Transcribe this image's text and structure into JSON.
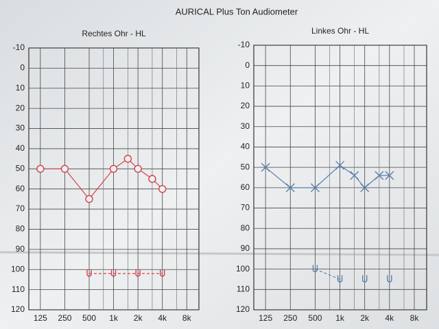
{
  "title": "AURICAL Plus Ton Audiometer",
  "chart_data": [
    {
      "type": "line",
      "title": "Rechtes Ohr - HL",
      "xscale": "log",
      "xlim": [
        90,
        11300
      ],
      "ylim": [
        -10,
        120
      ],
      "yinverted": true,
      "grid": true,
      "xticks": [
        125,
        250,
        500,
        {
          "value": 1000,
          "label": "1k"
        },
        {
          "value": 2000,
          "label": "2k"
        },
        {
          "value": 4000,
          "label": "4k"
        },
        {
          "value": 8000,
          "label": "8k"
        }
      ],
      "xminor": [
        750,
        1500,
        3000,
        6000
      ],
      "yticks": [
        -10,
        0,
        10,
        20,
        30,
        40,
        50,
        60,
        70,
        80,
        90,
        100,
        110,
        120
      ],
      "series": [
        {
          "color": "#d6404a",
          "marker": "o",
          "line": "solid",
          "x": [
            125,
            250,
            500,
            1000,
            1500,
            2000,
            3000,
            4000
          ],
          "values": [
            50,
            50,
            65,
            50,
            45,
            50,
            55,
            60
          ]
        },
        {
          "color": "#d6404a",
          "marker": "u",
          "line": "dashed",
          "x": [
            500,
            1000,
            2000,
            4000
          ],
          "values": [
            102,
            102,
            102,
            102
          ]
        }
      ]
    },
    {
      "type": "line",
      "title": "Linkes Ohr - HL",
      "xscale": "log",
      "xlim": [
        90,
        11300
      ],
      "ylim": [
        -10,
        120
      ],
      "yinverted": true,
      "grid": true,
      "xticks": [
        125,
        250,
        500,
        {
          "value": 1000,
          "label": "1k"
        },
        {
          "value": 2000,
          "label": "2k"
        },
        {
          "value": 4000,
          "label": "4k"
        },
        {
          "value": 8000,
          "label": "8k"
        }
      ],
      "xminor": [
        750,
        1500,
        3000,
        6000
      ],
      "yticks": [
        -10,
        0,
        10,
        20,
        30,
        40,
        50,
        60,
        70,
        80,
        90,
        100,
        110,
        120
      ],
      "series": [
        {
          "color": "#5a7fae",
          "marker": "x",
          "line": "solid",
          "x": [
            125,
            250,
            500,
            1000,
            1500,
            2000,
            3000,
            4000
          ],
          "values": [
            50,
            60,
            60,
            49,
            54,
            60,
            54,
            54
          ]
        },
        {
          "color": "#5a7fae",
          "marker": "u",
          "line": "dashed",
          "x": [
            500,
            1000
          ],
          "values": [
            100,
            105
          ]
        },
        {
          "color": "#5a7fae",
          "marker": "u",
          "line": "none",
          "x": [
            2000,
            4000
          ],
          "values": [
            105,
            105
          ]
        }
      ]
    }
  ]
}
